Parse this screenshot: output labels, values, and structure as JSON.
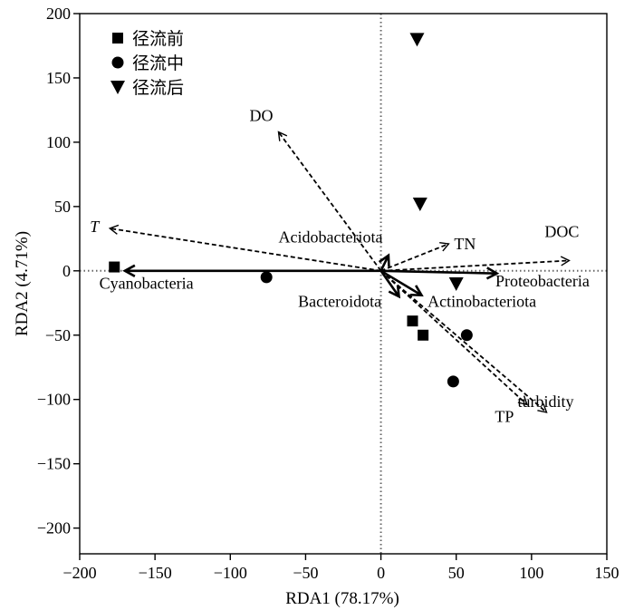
{
  "chart_data": {
    "type": "scatter",
    "xlabel": "RDA1 (78.17%)",
    "ylabel": "RDA2 (4.71%)",
    "xlim": [
      -200,
      150
    ],
    "ylim": [
      -220,
      200
    ],
    "x_ticks": [
      -200,
      -150,
      -100,
      -50,
      0,
      50,
      100,
      150
    ],
    "y_ticks": [
      -200,
      -150,
      -100,
      -50,
      0,
      50,
      100,
      150,
      200
    ],
    "x_tick_labels": [
      "−200",
      "−150",
      "−100",
      "−50",
      "0",
      "50",
      "100",
      "150"
    ],
    "y_tick_labels": [
      "−200",
      "−150",
      "−100",
      "−50",
      "0",
      "50",
      "100",
      "150",
      "200"
    ],
    "reference_lines": {
      "x": 0,
      "y": 0,
      "style": "dotted"
    },
    "legend": {
      "position": "top-left",
      "entries": [
        {
          "label": "径流前",
          "marker": "square"
        },
        {
          "label": "径流中",
          "marker": "circle"
        },
        {
          "label": "径流后",
          "marker": "triangle-down"
        }
      ]
    },
    "series": [
      {
        "name": "径流前",
        "marker": "square",
        "points": [
          [
            -177,
            3
          ],
          [
            21,
            -39
          ],
          [
            28,
            -50
          ]
        ]
      },
      {
        "name": "径流中",
        "marker": "circle",
        "points": [
          [
            -76,
            -5
          ],
          [
            57,
            -50
          ],
          [
            48,
            -86
          ]
        ]
      },
      {
        "name": "径流后",
        "marker": "triangle-down",
        "points": [
          [
            24,
            180
          ],
          [
            26,
            52
          ],
          [
            50,
            -10
          ]
        ]
      }
    ],
    "env_vectors": [
      {
        "label": "DO",
        "x": -68,
        "y": 108,
        "italic": false
      },
      {
        "label": "T",
        "x": -180,
        "y": 33,
        "italic": true
      },
      {
        "label": "TN",
        "x": 45,
        "y": 21,
        "italic": false
      },
      {
        "label": "DOC",
        "x": 125,
        "y": 8,
        "italic": false
      },
      {
        "label": "turbidity",
        "x": 110,
        "y": -110,
        "italic": false
      },
      {
        "label": "TP",
        "x": 97,
        "y": -104,
        "italic": false
      }
    ],
    "species_vectors": [
      {
        "label": "Cyanobacteria",
        "x": -170,
        "y": 0
      },
      {
        "label": "Proteobacteria",
        "x": 77,
        "y": -2
      },
      {
        "label": "Acidobacteriota",
        "x": 5,
        "y": 12
      },
      {
        "label": "Actinobacteriota",
        "x": 27,
        "y": -19
      },
      {
        "label": "Bacteroidota",
        "x": 12,
        "y": -20
      }
    ]
  }
}
